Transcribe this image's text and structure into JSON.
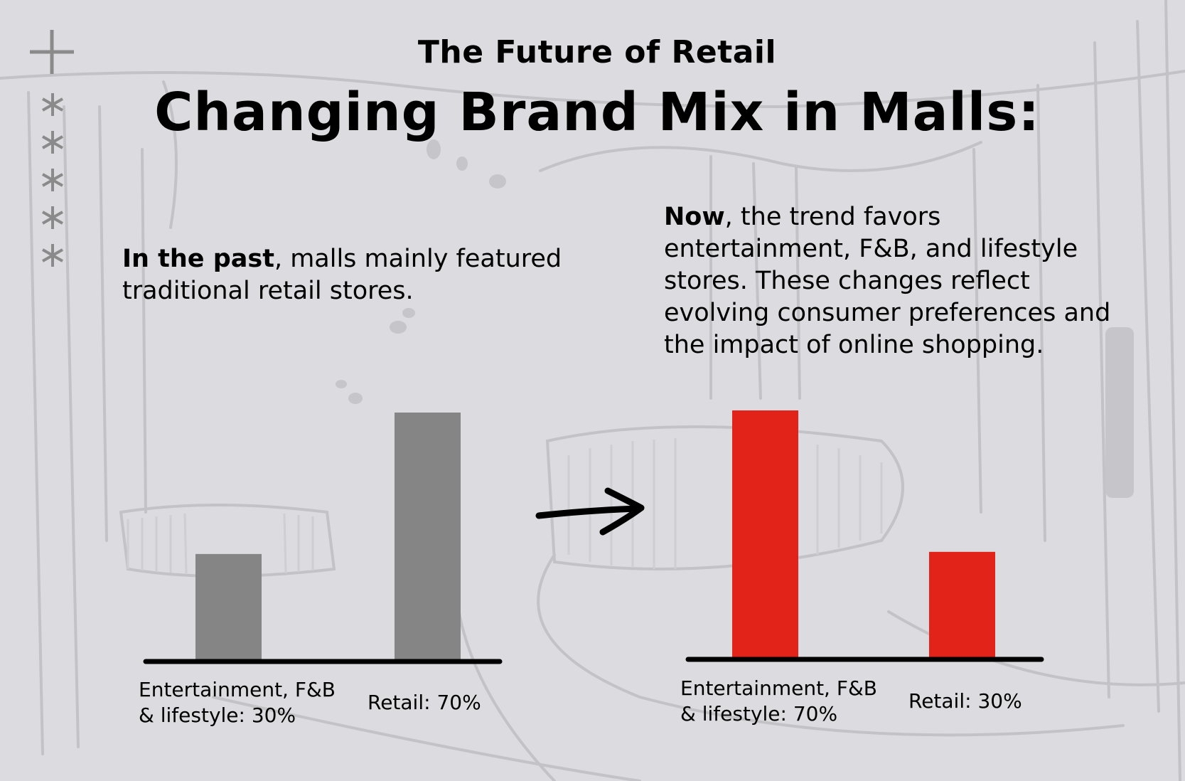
{
  "header": {
    "overline": "The Future of Retail",
    "title": "Changing Brand Mix in Malls:"
  },
  "past": {
    "lead": "In the past",
    "text": ", malls mainly featured traditional retail stores."
  },
  "now": {
    "lead": "Now",
    "text": ", the trend favors entertainment, F&B, and lifestyle stores. These changes reflect evolving consumer preferences and the impact of online shopping."
  },
  "colors": {
    "background": "#dcdbdf",
    "past_bar": "#858585",
    "now_bar": "#e2231a",
    "axis": "#000000",
    "decor": "#8a8a8a"
  },
  "icons": [
    "plus-icon",
    "asterisk-icon",
    "arrow-right-icon"
  ],
  "chart_data": [
    {
      "type": "bar",
      "categories": [
        "Entertainment, F&B & lifestyle",
        "Retail"
      ],
      "values": [
        30,
        70
      ],
      "labels": [
        "Entertainment, F&B\n& lifestyle: 30%",
        "Retail: 70%"
      ],
      "ylim": [
        0,
        70
      ],
      "grid": false,
      "legend": "none"
    },
    {
      "type": "bar",
      "categories": [
        "Entertainment, F&B & lifestyle",
        "Retail"
      ],
      "values": [
        70,
        30
      ],
      "labels": [
        "Entertainment, F&B\n& lifestyle: 70%",
        "Retail: 30%"
      ],
      "ylim": [
        0,
        70
      ],
      "grid": false,
      "legend": "none"
    }
  ]
}
